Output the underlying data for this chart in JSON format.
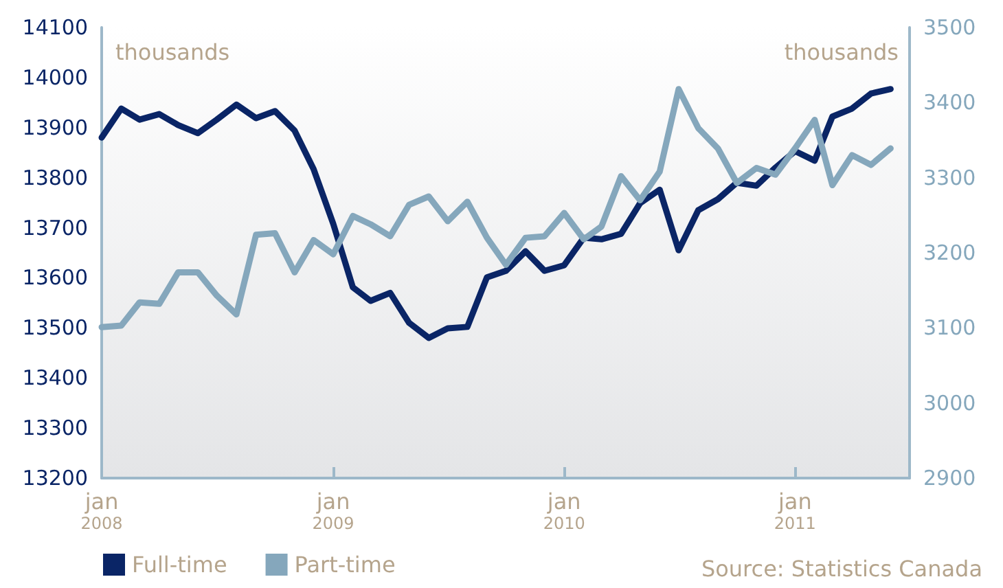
{
  "chart_data": {
    "type": "line",
    "ylabel": "thousands",
    "y2label": "thousands",
    "annotations": [
      "Source: Statistics Canada"
    ],
    "x": [
      "2008-01",
      "2008-02",
      "2008-03",
      "2008-04",
      "2008-05",
      "2008-06",
      "2008-07",
      "2008-08",
      "2008-09",
      "2008-10",
      "2008-11",
      "2008-12",
      "2009-01",
      "2009-02",
      "2009-03",
      "2009-04",
      "2009-05",
      "2009-06",
      "2009-07",
      "2009-08",
      "2009-09",
      "2009-10",
      "2009-11",
      "2009-12",
      "2010-01",
      "2010-02",
      "2010-03",
      "2010-04",
      "2010-05",
      "2010-06",
      "2010-07",
      "2010-08",
      "2010-09",
      "2010-10",
      "2010-11",
      "2010-12",
      "2011-01",
      "2011-02",
      "2011-03",
      "2011-04",
      "2011-05",
      "2011-06"
    ],
    "series": [
      {
        "name": "Full-time",
        "color": "#0a2566",
        "values": [
          13880,
          13938,
          13916,
          13927,
          13905,
          13889,
          13916,
          13946,
          13919,
          13933,
          13894,
          13817,
          13708,
          13581,
          13554,
          13570,
          13510,
          13480,
          13499,
          13502,
          13601,
          13614,
          13653,
          13614,
          13625,
          13680,
          13677,
          13688,
          13749,
          13776,
          13655,
          13735,
          13757,
          13790,
          13784,
          13820,
          13853,
          13834,
          13922,
          13938,
          13968,
          13977
        ]
      },
      {
        "name": "Part-time",
        "color": "#85a7bc",
        "axis": "y2",
        "values": [
          3101,
          3103,
          3134,
          3132,
          3174,
          3174,
          3143,
          3118,
          3224,
          3226,
          3174,
          3217,
          3198,
          3249,
          3238,
          3222,
          3264,
          3275,
          3242,
          3268,
          3220,
          3184,
          3220,
          3222,
          3253,
          3218,
          3235,
          3302,
          3270,
          3308,
          3418,
          3366,
          3339,
          3293,
          3313,
          3304,
          3339,
          3377,
          3290,
          3330,
          3317,
          3339
        ]
      }
    ],
    "xlim": [
      "2008-01",
      "2011-07"
    ],
    "xticks": [
      {
        "value": "2008-01",
        "label": "jan\n2008"
      },
      {
        "value": "2009-01",
        "label": "jan\n2009"
      },
      {
        "value": "2010-01",
        "label": "jan\n2010"
      },
      {
        "value": "2011-01",
        "label": "jan\n2011"
      }
    ],
    "ylim": [
      13200,
      14100
    ],
    "yticks": [
      13200,
      13300,
      13400,
      13500,
      13600,
      13700,
      13800,
      13900,
      14000,
      14100
    ],
    "y2lim": [
      2900,
      3500
    ],
    "y2ticks": [
      2900,
      3000,
      3100,
      3200,
      3300,
      3400,
      3500
    ],
    "grid": false,
    "legend": "bottom left",
    "marker": "none",
    "line_style": "solid"
  }
}
